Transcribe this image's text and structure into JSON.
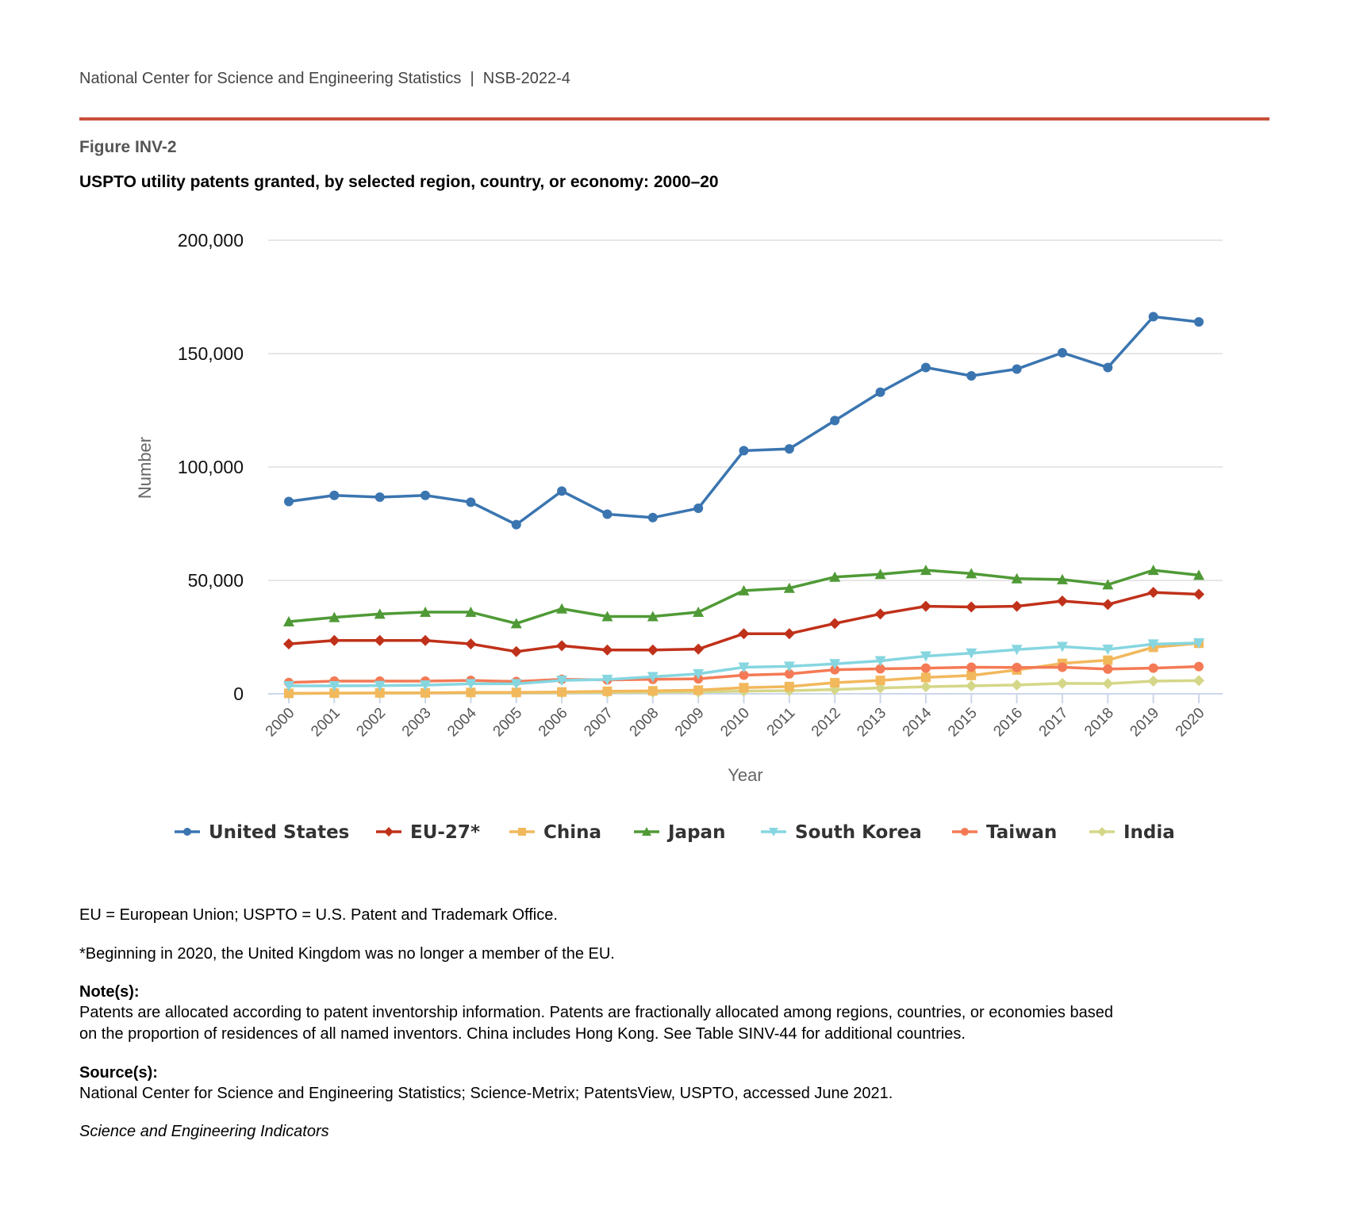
{
  "header": {
    "text": "National Center for Science and Engineering Statistics  |  NSB-2022-4"
  },
  "figure": {
    "label": "Figure INV-2",
    "title": "USPTO utility patents granted, by selected region, country, or economy: 2000–20"
  },
  "chart_data": {
    "type": "line",
    "title": "USPTO utility patents granted, by selected region, country, or economy: 2000–20",
    "xlabel": "Year",
    "ylabel": "Number",
    "ylim": [
      0,
      200000
    ],
    "yticks": [
      0,
      50000,
      100000,
      150000,
      200000
    ],
    "ytick_labels": [
      "0",
      "50,000",
      "100,000",
      "150,000",
      "200,000"
    ],
    "grid": true,
    "legend": "bottom",
    "x": [
      "2000",
      "2001",
      "2002",
      "2003",
      "2004",
      "2005",
      "2006",
      "2007",
      "2008",
      "2009",
      "2010",
      "2011",
      "2012",
      "2013",
      "2014",
      "2015",
      "2016",
      "2017",
      "2018",
      "2019",
      "2020"
    ],
    "series": [
      {
        "name": "United States",
        "color": "#3a75b0",
        "marker": "circle",
        "values": [
          84800,
          87500,
          86700,
          87500,
          84500,
          74600,
          89400,
          79200,
          77700,
          81800,
          107200,
          108000,
          120500,
          133000,
          143900,
          140200,
          143200,
          150400,
          143900,
          166300,
          164000
        ]
      },
      {
        "name": "EU-27*",
        "color": "#c0311a",
        "marker": "diamond",
        "values": [
          22000,
          23500,
          23500,
          23500,
          22000,
          18600,
          21200,
          19300,
          19300,
          19700,
          26500,
          26500,
          31000,
          35200,
          38600,
          38300,
          38600,
          40900,
          39400,
          44700,
          43900
        ]
      },
      {
        "name": "China",
        "color": "#f2b85c",
        "marker": "square",
        "values": [
          200,
          300,
          400,
          400,
          600,
          600,
          800,
          1100,
          1300,
          1600,
          2700,
          3200,
          4900,
          5900,
          7200,
          8100,
          10500,
          13400,
          14800,
          20500,
          22300
        ]
      },
      {
        "name": "Japan",
        "color": "#4f9a36",
        "marker": "triangle-up",
        "values": [
          31800,
          33700,
          35200,
          36000,
          36000,
          31000,
          37500,
          34100,
          34100,
          36000,
          45500,
          46600,
          51500,
          52700,
          54500,
          53000,
          50800,
          50400,
          48100,
          54500,
          52300
        ]
      },
      {
        "name": "South Korea",
        "color": "#86d6e0",
        "marker": "triangle-down",
        "values": [
          3500,
          3500,
          3600,
          3800,
          4400,
          4400,
          5900,
          6300,
          7500,
          8800,
          11700,
          12100,
          13200,
          14500,
          16600,
          17900,
          19500,
          20800,
          19600,
          21900,
          22400
        ]
      },
      {
        "name": "Taiwan",
        "color": "#f47a55",
        "marker": "circle",
        "values": [
          5000,
          5600,
          5600,
          5600,
          5900,
          5400,
          6400,
          6100,
          6400,
          6600,
          8200,
          8800,
          10600,
          11000,
          11300,
          11700,
          11600,
          11700,
          10900,
          11300,
          12000
        ]
      },
      {
        "name": "India",
        "color": "#d4d788",
        "marker": "diamond",
        "values": [
          100,
          200,
          300,
          400,
          400,
          400,
          500,
          600,
          700,
          800,
          1200,
          1400,
          1900,
          2600,
          3100,
          3500,
          3900,
          4600,
          4500,
          5600,
          5800
        ]
      }
    ]
  },
  "notes": {
    "abbrev": "EU = European Union; USPTO = U.S. Patent and Trademark Office.",
    "footnote": "*Beginning in 2020, the United Kingdom was no longer a member of the EU.",
    "note_heading": "Note(s):",
    "note_line1": "Patents are allocated according to patent inventorship information. Patents are fractionally allocated among regions, countries, or economies based",
    "note_line2": "on the proportion of residences of all named inventors. China includes Hong Kong. See Table SINV-44 for additional countries.",
    "source_heading": "Source(s):",
    "source_text": "National Center for Science and Engineering Statistics; Science-Metrix; PatentsView, USPTO, accessed June 2021.",
    "publication": "Science and Engineering Indicators"
  }
}
